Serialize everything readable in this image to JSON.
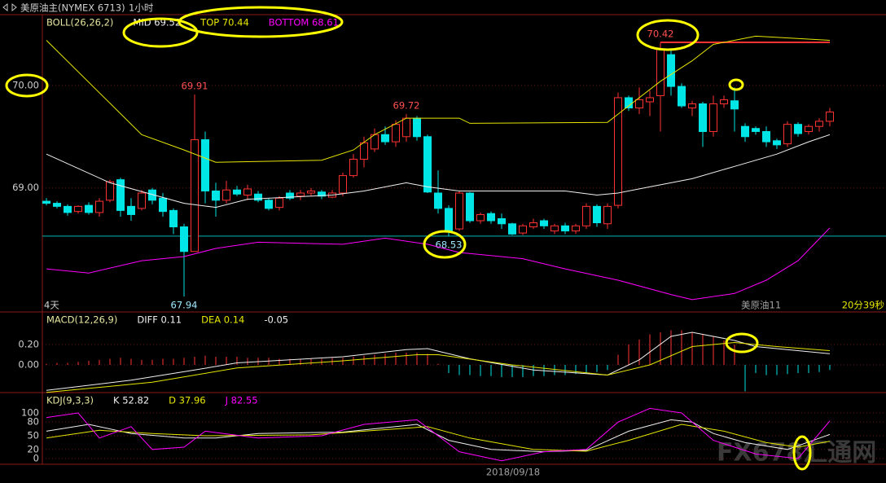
{
  "header": {
    "symbol": "美原油主(NYMEX 6713)",
    "period": "1小时",
    "watermark": "FX678汇通网"
  },
  "chart_data": [
    {
      "type": "candlestick",
      "title": "BOLL(26,26,2)",
      "title_color": "#e6e6a0",
      "up_color": "#ff3232",
      "down_color": "#00e5e5",
      "open": [
        68.87,
        68.85,
        68.82,
        68.77,
        68.83,
        68.76,
        68.88,
        69.08,
        68.82,
        68.8,
        68.98,
        68.9,
        68.78,
        68.62,
        68.38,
        69.47,
        68.97,
        68.88,
        68.98,
        68.93,
        68.94,
        68.88,
        68.81,
        68.95,
        68.92,
        68.95,
        68.96,
        68.91,
        68.95,
        69.12,
        69.28,
        69.38,
        69.52,
        69.45,
        69.5,
        69.68,
        69.5,
        68.95,
        68.8,
        68.6,
        68.95,
        68.68,
        68.75,
        68.7,
        68.65,
        68.56,
        68.62,
        68.68,
        68.58,
        68.63,
        68.58,
        68.63,
        68.82,
        68.65,
        68.83,
        69.88,
        69.78,
        69.84,
        69.9,
        70.3,
        69.99,
        69.78,
        69.82,
        69.55,
        69.82,
        69.85,
        69.6,
        69.58,
        69.55,
        69.46,
        69.43,
        69.62,
        69.55,
        69.6,
        69.65
      ],
      "high": [
        68.9,
        68.87,
        68.84,
        68.83,
        68.86,
        68.9,
        69.08,
        69.1,
        68.9,
        68.98,
        69.0,
        68.95,
        68.8,
        68.65,
        69.91,
        69.55,
        69.05,
        69.07,
        69.02,
        69.03,
        68.97,
        68.9,
        68.92,
        68.98,
        68.98,
        69.0,
        68.98,
        68.98,
        69.15,
        69.33,
        69.5,
        69.58,
        69.6,
        69.66,
        69.72,
        69.7,
        69.52,
        69.17,
        68.83,
        68.97,
        68.96,
        68.76,
        68.77,
        68.75,
        68.66,
        68.65,
        68.7,
        68.7,
        68.65,
        68.66,
        68.65,
        68.85,
        68.84,
        68.85,
        69.93,
        69.9,
        69.98,
        69.95,
        70.42,
        70.35,
        70.02,
        69.85,
        69.84,
        69.9,
        69.9,
        69.98,
        69.63,
        69.6,
        69.6,
        69.48,
        69.65,
        69.64,
        69.62,
        69.68,
        69.78
      ],
      "low": [
        68.83,
        68.8,
        68.73,
        68.75,
        68.74,
        68.72,
        68.86,
        68.72,
        68.68,
        68.78,
        68.84,
        68.72,
        68.55,
        67.94,
        68.38,
        68.85,
        68.72,
        68.85,
        68.92,
        68.88,
        68.86,
        68.78,
        68.78,
        68.88,
        68.88,
        68.92,
        68.89,
        68.9,
        68.92,
        69.1,
        69.2,
        69.35,
        69.42,
        69.4,
        69.45,
        69.46,
        68.95,
        68.75,
        68.53,
        68.58,
        68.66,
        68.65,
        68.65,
        68.6,
        68.54,
        68.54,
        68.6,
        68.6,
        68.55,
        68.55,
        68.55,
        68.6,
        68.62,
        68.6,
        68.8,
        69.75,
        69.72,
        69.7,
        69.55,
        69.9,
        69.78,
        69.7,
        69.4,
        69.5,
        69.78,
        69.55,
        69.45,
        69.52,
        69.4,
        69.38,
        69.4,
        69.5,
        69.52,
        69.55,
        69.6
      ],
      "close": [
        68.85,
        68.82,
        68.76,
        68.82,
        68.76,
        68.87,
        69.06,
        68.78,
        68.74,
        68.95,
        68.88,
        68.77,
        68.62,
        68.38,
        69.47,
        68.97,
        68.88,
        68.98,
        68.94,
        68.99,
        68.88,
        68.8,
        68.9,
        68.9,
        68.95,
        68.97,
        68.92,
        68.95,
        69.12,
        69.28,
        69.44,
        69.52,
        69.45,
        69.62,
        69.68,
        69.5,
        68.96,
        68.8,
        68.58,
        68.95,
        68.68,
        68.74,
        68.68,
        68.65,
        68.55,
        68.63,
        68.66,
        68.63,
        68.63,
        68.58,
        68.63,
        68.82,
        68.66,
        68.82,
        69.88,
        69.78,
        69.86,
        69.88,
        70.35,
        69.99,
        69.8,
        69.82,
        69.55,
        69.82,
        69.86,
        69.77,
        69.5,
        69.55,
        69.45,
        69.42,
        69.62,
        69.53,
        69.6,
        69.65,
        69.74
      ],
      "lines": [
        {
          "name": "MID 69.52",
          "color": "#f0f0f0",
          "x": [
            0,
            6,
            13,
            16,
            19,
            27,
            30,
            34,
            36,
            39,
            49,
            52,
            54,
            57,
            61,
            65,
            69,
            72,
            74
          ],
          "values": [
            69.33,
            69.05,
            68.85,
            68.81,
            68.89,
            68.93,
            68.97,
            69.05,
            69.01,
            68.97,
            68.97,
            68.93,
            68.95,
            69.01,
            69.09,
            69.21,
            69.33,
            69.45,
            69.52
          ]
        },
        {
          "name": "TOP 70.44",
          "color": "#e6e600",
          "x": [
            0,
            9,
            13,
            16,
            26,
            29,
            31,
            34,
            39,
            40,
            53,
            54,
            58,
            61,
            63,
            67,
            74
          ],
          "values": [
            70.44,
            69.52,
            69.37,
            69.25,
            69.27,
            69.37,
            69.52,
            69.68,
            69.68,
            69.63,
            69.64,
            69.72,
            70.04,
            70.24,
            70.4,
            70.48,
            70.44
          ]
        },
        {
          "name": "BOTTOM 68.61",
          "color": "#ff00ff",
          "x": [
            0,
            4,
            9,
            13,
            16,
            20,
            28,
            32,
            36,
            39,
            45,
            49,
            54,
            59,
            61,
            65,
            68,
            71,
            74
          ],
          "values": [
            68.21,
            68.17,
            68.29,
            68.33,
            68.41,
            68.47,
            68.45,
            68.51,
            68.45,
            68.37,
            68.31,
            68.21,
            68.1,
            67.96,
            67.91,
            67.97,
            68.1,
            68.29,
            68.61
          ]
        }
      ],
      "annotations": [
        {
          "label": "69.91",
          "value": 69.91,
          "index": 14,
          "color": "#ff5050"
        },
        {
          "label": "67.94",
          "value": 67.94,
          "index": 13,
          "color": "#a0e8ff"
        },
        {
          "label": "69.72",
          "value": 69.72,
          "index": 34,
          "color": "#ff5050"
        },
        {
          "label": "68.53",
          "value": 68.53,
          "index": 38,
          "color": "#a0e8ff"
        },
        {
          "label": "70.42",
          "value": 70.42,
          "index": 58,
          "color": "#ff5050"
        }
      ],
      "hlines": [
        {
          "value": 68.53,
          "color": "#00b4b4"
        },
        {
          "value": 70.42,
          "color": "#ff3232",
          "from": 58
        }
      ],
      "ylim": [
        67.79,
        70.69
      ],
      "yticks": [
        {
          "value": 69,
          "label": "69.00"
        },
        {
          "value": 70,
          "label": "70.00"
        }
      ],
      "grid": true,
      "period_label": "4天",
      "contract_label": "美原油11",
      "countdown": "20分39秒"
    },
    {
      "type": "macd",
      "title": "MACD(12,26,9)",
      "title_color": "#e6e6a0",
      "histogram": {
        "name": "-0.05",
        "up_color": "#ff3232",
        "down_color": "#00e5e5",
        "values": [
          0.01,
          0.02,
          0.02,
          0.03,
          0.04,
          0.05,
          0.06,
          0.07,
          0.06,
          0.05,
          0.05,
          0.06,
          0.06,
          0.07,
          0.08,
          0.09,
          0.08,
          0.08,
          0.08,
          0.07,
          0.07,
          0.07,
          0.06,
          0.06,
          0.06,
          0.06,
          0.06,
          0.07,
          0.07,
          0.08,
          0.09,
          0.1,
          0.11,
          0.12,
          0.12,
          0.12,
          0.11,
          0.01,
          -0.08,
          -0.1,
          -0.1,
          -0.11,
          -0.11,
          -0.12,
          -0.12,
          -0.12,
          -0.11,
          -0.11,
          -0.1,
          -0.1,
          -0.09,
          -0.08,
          -0.07,
          -0.05,
          0.1,
          0.2,
          0.25,
          0.3,
          0.32,
          0.34,
          0.34,
          0.32,
          0.3,
          0.28,
          0.24,
          0.2,
          -0.26,
          -0.08,
          -0.1,
          -0.1,
          -0.09,
          -0.08,
          -0.08,
          -0.07,
          -0.05
        ]
      },
      "lines": [
        {
          "name": "DIFF 0.11",
          "color": "#f0f0f0",
          "x": [
            0,
            8,
            14,
            18,
            28,
            34,
            36,
            40,
            46,
            53,
            56,
            59,
            61,
            65,
            67,
            74
          ],
          "values": [
            -0.25,
            -0.15,
            -0.05,
            0.02,
            0.08,
            0.15,
            0.16,
            0.06,
            -0.05,
            -0.1,
            0.05,
            0.28,
            0.32,
            0.24,
            0.18,
            0.11
          ]
        },
        {
          "name": "DEA 0.14",
          "color": "#e6e600",
          "x": [
            0,
            10,
            18,
            28,
            35,
            37,
            44,
            53,
            57,
            61,
            65,
            69,
            74
          ],
          "values": [
            -0.27,
            -0.17,
            -0.03,
            0.04,
            0.1,
            0.1,
            0.0,
            -0.1,
            0.0,
            0.18,
            0.22,
            0.18,
            0.14
          ]
        }
      ],
      "ylim": [
        -0.272,
        0.52
      ],
      "yticks": [
        {
          "value": 0.2,
          "label": "0.20"
        },
        {
          "value": 0,
          "label": "0.00"
        }
      ],
      "grid": true
    },
    {
      "type": "kdj",
      "title": "KDJ(9,3,3)",
      "title_color": "#e6e6a0",
      "lines": [
        {
          "name": "K 52.82",
          "color": "#f0f0f0",
          "x": [
            0,
            4,
            8,
            13,
            16,
            20,
            28,
            33,
            35,
            38,
            42,
            47,
            51,
            55,
            59,
            61,
            63,
            66,
            70,
            74
          ],
          "values": [
            60,
            75,
            55,
            45,
            45,
            55,
            58,
            70,
            75,
            40,
            20,
            15,
            18,
            60,
            85,
            80,
            55,
            35,
            20,
            52.82
          ]
        },
        {
          "name": "D 37.96",
          "color": "#e6e600",
          "x": [
            0,
            5,
            10,
            15,
            25,
            33,
            36,
            40,
            46,
            51,
            55,
            60,
            64,
            68,
            71,
            74
          ],
          "values": [
            45,
            62,
            55,
            50,
            52,
            65,
            70,
            45,
            20,
            16,
            40,
            75,
            60,
            35,
            25,
            37.96
          ]
        },
        {
          "name": "J 82.55",
          "color": "#ff00ff",
          "x": [
            0,
            3,
            5,
            8,
            10,
            13,
            15,
            20,
            26,
            30,
            35,
            39,
            43,
            47,
            51,
            54,
            57,
            60,
            63,
            67,
            71,
            74
          ],
          "values": [
            90,
            100,
            45,
            70,
            20,
            25,
            60,
            45,
            50,
            75,
            85,
            15,
            -5,
            15,
            20,
            80,
            110,
            100,
            40,
            10,
            0,
            82.55
          ]
        }
      ],
      "ylim": [
        -12.5,
        144.6
      ],
      "yticks": [
        0,
        20,
        50,
        80,
        100
      ],
      "grid": true,
      "x_label": "2018/09/18"
    }
  ]
}
